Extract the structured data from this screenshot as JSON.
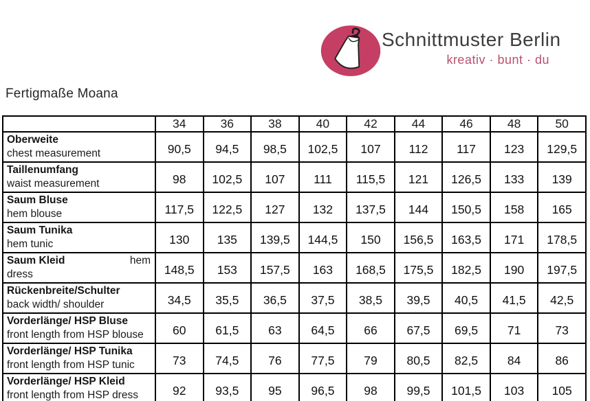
{
  "logo": {
    "brand": "Schnittmuster Berlin",
    "tagline": "kreativ · bunt · du",
    "circle_color": "#c53e63",
    "icon": "dress-on-hanger-icon"
  },
  "page_title": "Fertigmaße Moana",
  "table": {
    "sizes": [
      "34",
      "36",
      "38",
      "40",
      "42",
      "44",
      "46",
      "48",
      "50"
    ],
    "rows": [
      {
        "de": "Oberweite",
        "en_inline": "",
        "en": "chest measurement",
        "values": [
          "90,5",
          "94,5",
          "98,5",
          "102,5",
          "107",
          "112",
          "117",
          "123",
          "129,5"
        ]
      },
      {
        "de": "Taillenumfang",
        "en_inline": "",
        "en": "waist measurement",
        "values": [
          "98",
          "102,5",
          "107",
          "111",
          "115,5",
          "121",
          "126,5",
          "133",
          "139"
        ]
      },
      {
        "de": "Saum Bluse",
        "en_inline": "",
        "en": "hem blouse",
        "values": [
          "117,5",
          "122,5",
          "127",
          "132",
          "137,5",
          "144",
          "150,5",
          "158",
          "165"
        ]
      },
      {
        "de": "Saum Tunika",
        "en_inline": "",
        "en": "hem tunic",
        "values": [
          "130",
          "135",
          "139,5",
          "144,5",
          "150",
          "156,5",
          "163,5",
          "171",
          "178,5"
        ]
      },
      {
        "de": "Saum Kleid",
        "en_inline": "hem",
        "en": "dress",
        "values": [
          "148,5",
          "153",
          "157,5",
          "163",
          "168,5",
          "175,5",
          "182,5",
          "190",
          "197,5"
        ]
      },
      {
        "de": "Rückenbreite/Schulter",
        "en_inline": "",
        "en": "back width/ shoulder",
        "values": [
          "34,5",
          "35,5",
          "36,5",
          "37,5",
          "38,5",
          "39,5",
          "40,5",
          "41,5",
          "42,5"
        ]
      },
      {
        "de": "Vorderlänge/ HSP Bluse",
        "en_inline": "",
        "en": "front length from HSP blouse",
        "values": [
          "60",
          "61,5",
          "63",
          "64,5",
          "66",
          "67,5",
          "69,5",
          "71",
          "73"
        ]
      },
      {
        "de": "Vorderlänge/ HSP Tunika",
        "en_inline": "",
        "en": "front length from HSP tunic",
        "values": [
          "73",
          "74,5",
          "76",
          "77,5",
          "79",
          "80,5",
          "82,5",
          "84",
          "86"
        ]
      },
      {
        "de": "Vorderlänge/ HSP Kleid",
        "en_inline": "",
        "en": "front length from HSP dress",
        "values": [
          "92",
          "93,5",
          "95",
          "96,5",
          "98",
          "99,5",
          "101,5",
          "103",
          "105"
        ]
      }
    ]
  }
}
